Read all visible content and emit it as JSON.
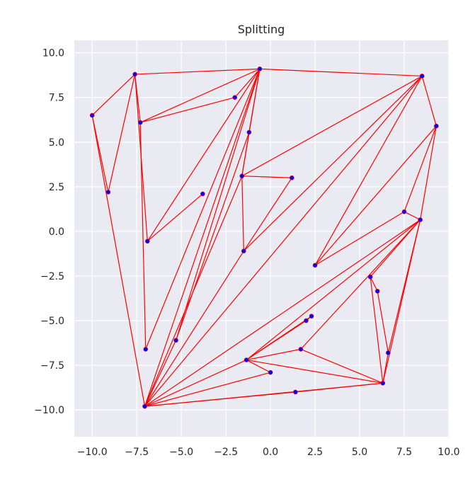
{
  "chart_data": {
    "type": "scatter",
    "title": "Splitting",
    "xlabel": "",
    "ylabel": "",
    "xlim": [
      -11.0,
      10.0
    ],
    "ylim": [
      -11.5,
      10.7
    ],
    "xticks": [
      -10.0,
      -7.5,
      -5.0,
      -2.5,
      0.0,
      2.5,
      5.0,
      7.5,
      10.0
    ],
    "yticks": [
      -10.0,
      -7.5,
      -5.0,
      -2.5,
      0.0,
      2.5,
      5.0,
      7.5,
      10.0
    ],
    "xtick_labels": [
      "−10.0",
      "−7.5",
      "−5.0",
      "−2.5",
      "0.0",
      "2.5",
      "5.0",
      "7.5",
      "10.0"
    ],
    "ytick_labels": [
      "−10.0",
      "−7.5",
      "−5.0",
      "−2.5",
      "0.0",
      "2.5",
      "5.0",
      "7.5",
      "10.0"
    ],
    "grid": true,
    "background_color": "#eaeaf2",
    "grid_color": "#ffffff",
    "point_color": "#0000ff",
    "edge_color": "#ff0000",
    "points": [
      {
        "x": -10.0,
        "y": 6.5
      },
      {
        "x": -9.1,
        "y": 2.2
      },
      {
        "x": -7.6,
        "y": 8.8
      },
      {
        "x": -7.3,
        "y": 6.1
      },
      {
        "x": -6.9,
        "y": -0.55
      },
      {
        "x": -7.0,
        "y": -6.6
      },
      {
        "x": -7.05,
        "y": -9.8
      },
      {
        "x": -0.6,
        "y": 9.1
      },
      {
        "x": -2.0,
        "y": 7.5
      },
      {
        "x": -1.2,
        "y": 5.55
      },
      {
        "x": -1.6,
        "y": 3.1
      },
      {
        "x": 1.2,
        "y": 3.0
      },
      {
        "x": -3.8,
        "y": 2.1
      },
      {
        "x": -1.5,
        "y": -1.1
      },
      {
        "x": -5.3,
        "y": -6.1
      },
      {
        "x": 8.5,
        "y": 8.7
      },
      {
        "x": 9.3,
        "y": 5.9
      },
      {
        "x": 7.5,
        "y": 1.1
      },
      {
        "x": 8.4,
        "y": 0.65
      },
      {
        "x": 2.5,
        "y": -1.9
      },
      {
        "x": 5.6,
        "y": -2.55
      },
      {
        "x": 6.0,
        "y": -3.35
      },
      {
        "x": 2.3,
        "y": -4.75
      },
      {
        "x": 2.0,
        "y": -5.0
      },
      {
        "x": 1.7,
        "y": -6.6
      },
      {
        "x": 6.6,
        "y": -6.8
      },
      {
        "x": -1.35,
        "y": -7.2
      },
      {
        "x": 0.0,
        "y": -7.9
      },
      {
        "x": 1.4,
        "y": -9.0
      },
      {
        "x": 6.3,
        "y": -8.5
      }
    ],
    "edges": [
      [
        -10.0,
        6.5,
        -7.6,
        8.8
      ],
      [
        -10.0,
        6.5,
        -9.1,
        2.2
      ],
      [
        -10.0,
        6.5,
        -7.05,
        -9.8
      ],
      [
        -9.1,
        2.2,
        -7.6,
        8.8
      ],
      [
        -7.6,
        8.8,
        -0.6,
        9.1
      ],
      [
        -7.6,
        8.8,
        -7.3,
        6.1
      ],
      [
        -7.6,
        8.8,
        -6.9,
        -0.55
      ],
      [
        -7.3,
        6.1,
        -0.6,
        9.1
      ],
      [
        -7.3,
        6.1,
        -2.0,
        7.5
      ],
      [
        -7.3,
        6.1,
        -7.0,
        -6.6
      ],
      [
        -6.9,
        -0.55,
        -0.6,
        9.1
      ],
      [
        -6.9,
        -0.55,
        -3.8,
        2.1
      ],
      [
        -0.6,
        9.1,
        8.5,
        8.7
      ],
      [
        -0.6,
        9.1,
        -2.0,
        7.5
      ],
      [
        -0.6,
        9.1,
        -1.2,
        5.55
      ],
      [
        -0.6,
        9.1,
        -1.6,
        3.1
      ],
      [
        -0.6,
        9.1,
        -7.0,
        -6.6
      ],
      [
        -0.6,
        9.1,
        -5.3,
        -6.1
      ],
      [
        -0.6,
        9.1,
        -7.05,
        -9.8
      ],
      [
        -1.2,
        5.55,
        -5.3,
        -6.1
      ],
      [
        -1.2,
        5.55,
        -1.6,
        3.1
      ],
      [
        -1.6,
        3.1,
        1.2,
        3.0
      ],
      [
        -1.6,
        3.1,
        -1.5,
        -1.1
      ],
      [
        -1.6,
        3.1,
        -7.05,
        -9.8
      ],
      [
        -1.6,
        3.1,
        8.5,
        8.7
      ],
      [
        1.2,
        3.0,
        -1.5,
        -1.1
      ],
      [
        -1.5,
        -1.1,
        8.5,
        8.7
      ],
      [
        -1.5,
        -1.1,
        -7.05,
        -9.8
      ],
      [
        -5.3,
        -6.1,
        -7.05,
        -9.8
      ],
      [
        8.5,
        8.7,
        9.3,
        5.9
      ],
      [
        8.5,
        8.7,
        2.5,
        -1.9
      ],
      [
        8.5,
        8.7,
        -7.05,
        -9.8
      ],
      [
        9.3,
        5.9,
        7.5,
        1.1
      ],
      [
        9.3,
        5.9,
        8.4,
        0.65
      ],
      [
        9.3,
        5.9,
        2.5,
        -1.9
      ],
      [
        7.5,
        1.1,
        8.4,
        0.65
      ],
      [
        7.5,
        1.1,
        2.5,
        -1.9
      ],
      [
        8.4,
        0.65,
        6.3,
        -8.5
      ],
      [
        8.4,
        0.65,
        6.6,
        -6.8
      ],
      [
        8.4,
        0.65,
        5.6,
        -2.55
      ],
      [
        8.4,
        0.65,
        1.7,
        -6.6
      ],
      [
        8.4,
        0.65,
        -1.35,
        -7.2
      ],
      [
        8.4,
        0.65,
        -7.05,
        -9.8
      ],
      [
        5.6,
        -2.55,
        6.3,
        -8.5
      ],
      [
        5.6,
        -2.55,
        6.0,
        -3.35
      ],
      [
        6.0,
        -3.35,
        6.6,
        -6.8
      ],
      [
        6.6,
        -6.8,
        6.3,
        -8.5
      ],
      [
        2.3,
        -4.75,
        -1.35,
        -7.2
      ],
      [
        2.0,
        -5.0,
        -1.35,
        -7.2
      ],
      [
        2.3,
        -4.75,
        2.0,
        -5.0
      ],
      [
        1.7,
        -6.6,
        -1.35,
        -7.2
      ],
      [
        1.7,
        -6.6,
        6.3,
        -8.5
      ],
      [
        -1.35,
        -7.2,
        0.0,
        -7.9
      ],
      [
        -1.35,
        -7.2,
        6.3,
        -8.5
      ],
      [
        -1.35,
        -7.2,
        -7.05,
        -9.8
      ],
      [
        0.0,
        -7.9,
        -7.05,
        -9.8
      ],
      [
        1.4,
        -9.0,
        6.3,
        -8.5
      ],
      [
        1.4,
        -9.0,
        -7.05,
        -9.8
      ],
      [
        6.3,
        -8.5,
        -7.05,
        -9.8
      ]
    ]
  }
}
